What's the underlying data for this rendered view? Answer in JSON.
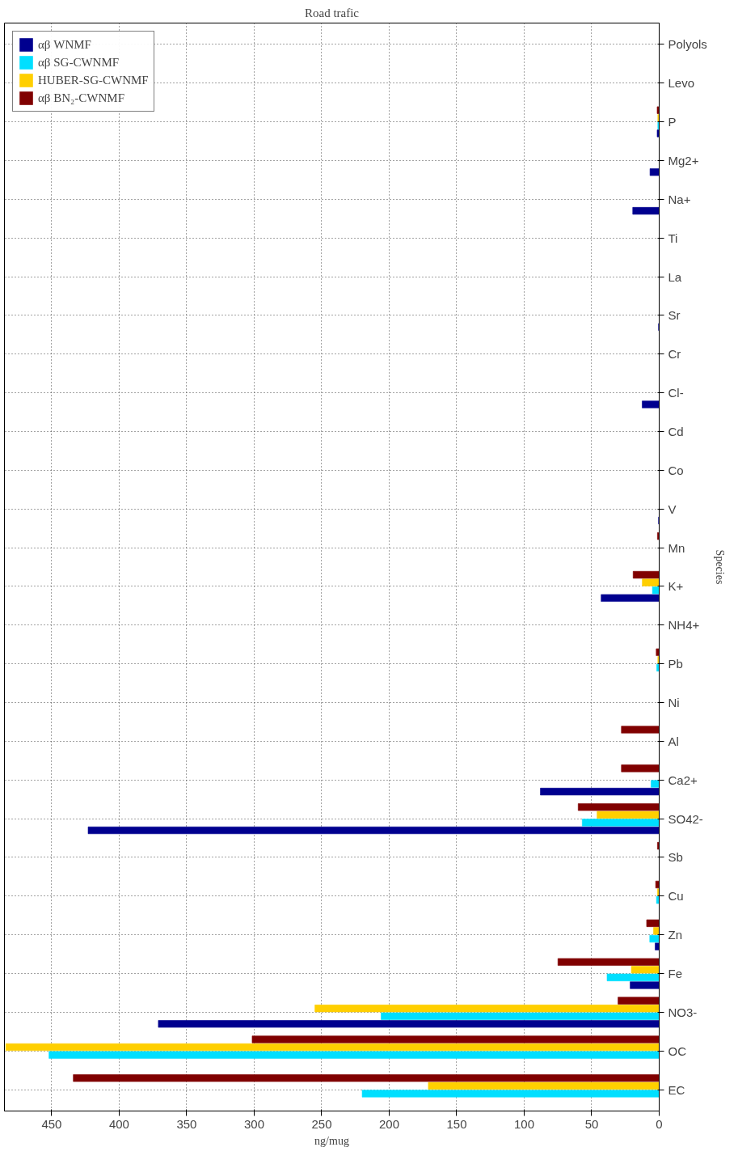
{
  "chart_data": {
    "type": "bar",
    "orientation": "horizontal",
    "title": "Road trafic",
    "xlabel": "ng/mug",
    "ylabel": "Species",
    "categories": [
      "Polyols",
      "Levo",
      "P",
      "Mg2+",
      "Na+",
      "Ti",
      "La",
      "Sr",
      "Cr",
      "Cl-",
      "Cd",
      "Co",
      "V",
      "Mn",
      "K+",
      "NH4+",
      "Pb",
      "Ni",
      "Al",
      "Ca2+",
      "SO42-",
      "Sb",
      "Cu",
      "Zn",
      "Fe",
      "NO3-",
      "OC",
      "EC"
    ],
    "series": [
      {
        "name": "αβ WNMF",
        "color": "#00008f",
        "values": [
          null,
          null,
          1.5,
          6.8,
          19.6,
          null,
          null,
          0.5,
          null,
          12.6,
          null,
          null,
          0.5,
          null,
          43,
          null,
          null,
          null,
          null,
          88,
          423,
          null,
          null,
          3,
          21.5,
          371,
          null,
          null
        ]
      },
      {
        "name": "αβ SG-CWNMF",
        "color": "#00dfff",
        "values": [
          null,
          null,
          1,
          null,
          null,
          null,
          null,
          null,
          null,
          null,
          null,
          null,
          null,
          null,
          5,
          null,
          1.8,
          null,
          null,
          6,
          57,
          null,
          2,
          7,
          38.6,
          206,
          452,
          220
        ]
      },
      {
        "name": "HUBER-SG-CWNMF",
        "color": "#ffcf00",
        "values": [
          null,
          null,
          1,
          null,
          null,
          null,
          null,
          null,
          null,
          null,
          null,
          null,
          null,
          null,
          12.5,
          null,
          1,
          null,
          null,
          null,
          46,
          null,
          1.3,
          4.2,
          20.6,
          255,
          484,
          171
        ]
      },
      {
        "name": "αβ BN₂-CWNMF",
        "color": "#800000",
        "values": [
          null,
          null,
          1.5,
          null,
          null,
          null,
          null,
          null,
          null,
          null,
          null,
          null,
          null,
          1.3,
          19.3,
          null,
          2.2,
          null,
          28,
          28,
          60,
          1.3,
          2.6,
          9.3,
          75,
          30.5,
          301.5,
          434
        ]
      }
    ],
    "xlim": [
      485,
      0
    ],
    "xticks": [
      0,
      50,
      100,
      150,
      200,
      250,
      300,
      350,
      400,
      450
    ],
    "grid": true,
    "legend": "top left"
  }
}
